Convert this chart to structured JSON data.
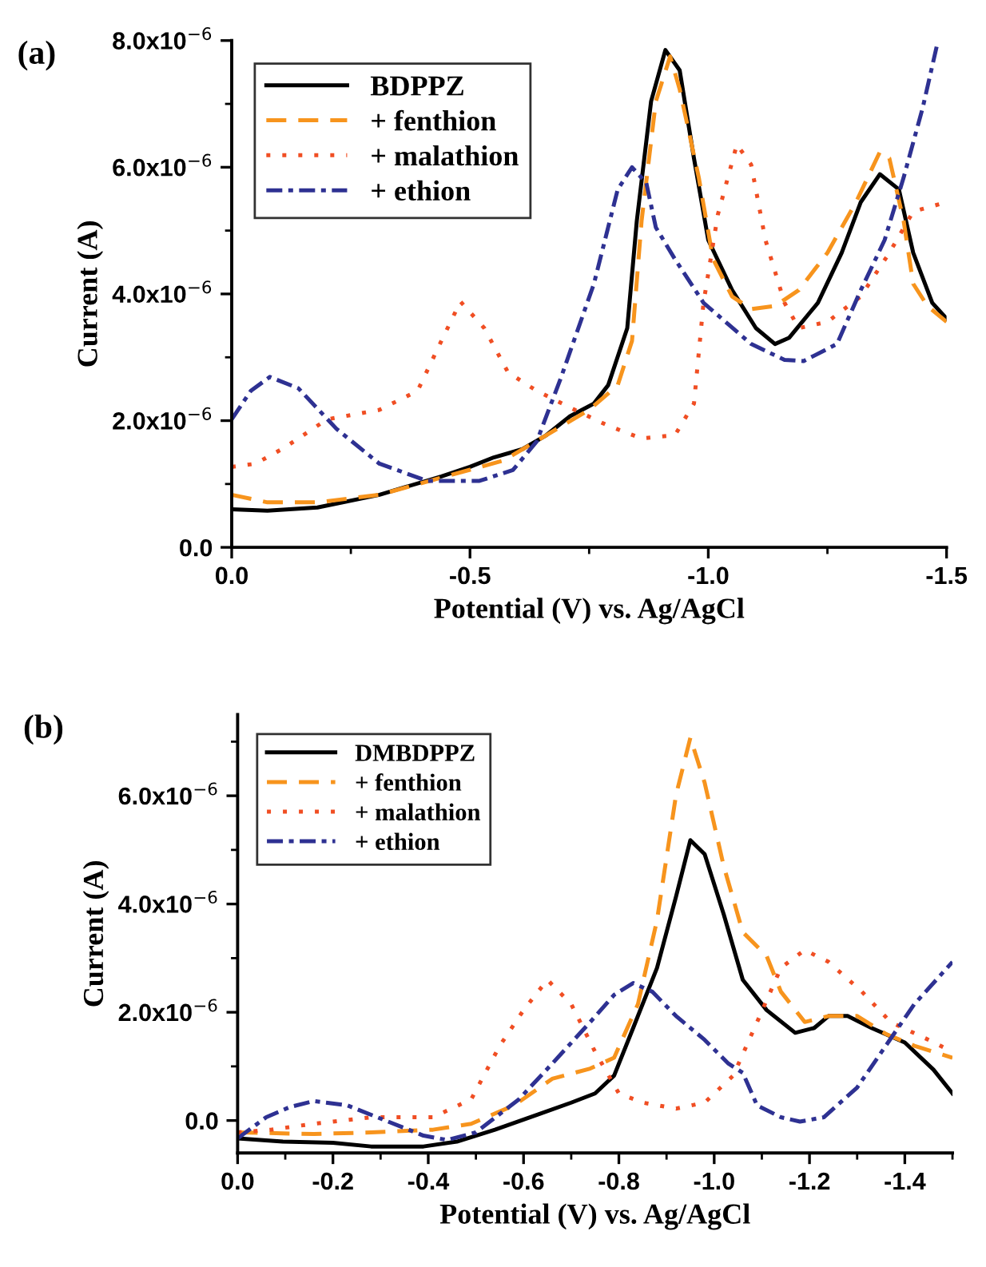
{
  "chart_data": [
    {
      "type": "line",
      "title": "(a)",
      "xlabel": "Potential (V) vs. Ag/AgCl",
      "ylabel": "Current (A)",
      "legend": "top left",
      "grid": false,
      "xlim": [
        0,
        -1.5
      ],
      "xticks": [
        {
          "value": 0,
          "label": "0.0"
        },
        {
          "value": -0.25,
          "label": null
        },
        {
          "value": -0.5,
          "label": "-0.5"
        },
        {
          "value": -0.75,
          "label": null
        },
        {
          "value": -1.0,
          "label": "-1.0"
        },
        {
          "value": -1.25,
          "label": null
        },
        {
          "value": -1.5,
          "label": "-1.5"
        }
      ],
      "ylim": [
        0,
        8e-06
      ],
      "yticks": [
        {
          "value": 0,
          "label": "0.0"
        },
        {
          "value": 1e-06,
          "label": null
        },
        {
          "value": 2e-06,
          "label": "2.0x10$^{−6}$"
        },
        {
          "value": 3e-06,
          "label": null
        },
        {
          "value": 4e-06,
          "label": "4.0x10$^{−6}$"
        },
        {
          "value": 5e-06,
          "label": null
        },
        {
          "value": 6e-06,
          "label": "6.0x10$^{−6}$"
        },
        {
          "value": 7e-06,
          "label": null
        },
        {
          "value": 8e-06,
          "label": "8.0x10$^{−6}$"
        }
      ],
      "series": [
        {
          "name": "BDPPZ",
          "color": "#000000",
          "line_style": "solid",
          "x": [
            0,
            -0.075,
            -0.18,
            -0.31,
            -0.44,
            -0.5,
            -0.55,
            -0.61,
            -0.66,
            -0.71,
            -0.76,
            -0.79,
            -0.83,
            -0.85,
            -0.88,
            -0.91,
            -0.94,
            -0.97,
            -1.0,
            -1.05,
            -1.1,
            -1.14,
            -1.17,
            -1.23,
            -1.28,
            -1.32,
            -1.36,
            -1.4,
            -1.43,
            -1.47,
            -1.5
          ],
          "values": [
            6e-07,
            5.8e-07,
            6.3e-07,
            8.3e-07,
            1.12e-06,
            1.27e-06,
            1.42e-06,
            1.55e-06,
            1.77e-06,
            2.07e-06,
            2.27e-06,
            2.56e-06,
            3.46e-06,
            5.15e-06,
            7.04e-06,
            7.85e-06,
            7.53e-06,
            6.14e-06,
            4.85e-06,
            4.06e-06,
            3.46e-06,
            3.21e-06,
            3.31e-06,
            3.86e-06,
            4.65e-06,
            5.45e-06,
            5.89e-06,
            5.65e-06,
            4.65e-06,
            3.86e-06,
            3.61e-06
          ]
        },
        {
          "name": "+ fenthion",
          "color": "#f7941d",
          "line_style": "dashed",
          "x": [
            0,
            -0.075,
            -0.18,
            -0.31,
            -0.44,
            -0.57,
            -0.66,
            -0.75,
            -0.81,
            -0.84,
            -0.86,
            -0.89,
            -0.92,
            -0.94,
            -0.98,
            -1.01,
            -1.05,
            -1.09,
            -1.14,
            -1.19,
            -1.25,
            -1.31,
            -1.36,
            -1.38,
            -1.41,
            -1.43,
            -1.46,
            -1.5
          ],
          "values": [
            8.3e-07,
            7.1e-07,
            7.1e-07,
            8.3e-07,
            1.1e-06,
            1.37e-06,
            1.77e-06,
            2.17e-06,
            2.56e-06,
            3.26e-06,
            5.15e-06,
            7.04e-06,
            7.75e-06,
            7.23e-06,
            5.84e-06,
            4.55e-06,
            3.96e-06,
            3.76e-06,
            3.81e-06,
            4.06e-06,
            4.65e-06,
            5.45e-06,
            6.24e-06,
            6.14e-06,
            5.15e-06,
            4.16e-06,
            3.81e-06,
            3.56e-06
          ]
        },
        {
          "name": "+ malathion",
          "color": "#f04e23",
          "line_style": "dotted",
          "x": [
            0,
            -0.05,
            -0.11,
            -0.2,
            -0.31,
            -0.39,
            -0.44,
            -0.48,
            -0.53,
            -0.58,
            -0.64,
            -0.72,
            -0.79,
            -0.86,
            -0.93,
            -0.97,
            -0.99,
            -1.02,
            -1.06,
            -1.09,
            -1.12,
            -1.16,
            -1.19,
            -1.25,
            -1.32,
            -1.38,
            -1.43,
            -1.5
          ],
          "values": [
            1.27e-06,
            1.32e-06,
            1.57e-06,
            2.02e-06,
            2.17e-06,
            2.47e-06,
            3.26e-06,
            3.88e-06,
            3.46e-06,
            2.76e-06,
            2.47e-06,
            2.17e-06,
            1.92e-06,
            1.72e-06,
            1.77e-06,
            2.27e-06,
            3.86e-06,
            5.25e-06,
            6.36e-06,
            6.04e-06,
            4.85e-06,
            3.86e-06,
            3.46e-06,
            3.56e-06,
            3.96e-06,
            4.65e-06,
            5.3e-06,
            5.45e-06
          ]
        },
        {
          "name": "+ ethion",
          "color": "#2e3192",
          "line_style": "dashdot",
          "x": [
            0,
            -0.04,
            -0.08,
            -0.14,
            -0.22,
            -0.31,
            -0.41,
            -0.52,
            -0.59,
            -0.64,
            -0.69,
            -0.76,
            -0.81,
            -0.84,
            -0.87,
            -0.89,
            -0.93,
            -0.99,
            -1.09,
            -1.16,
            -1.2,
            -1.27,
            -1.32,
            -1.37,
            -1.41,
            -1.45,
            -1.48
          ],
          "values": [
            2.02e-06,
            2.47e-06,
            2.69e-06,
            2.51e-06,
            1.87e-06,
            1.32e-06,
            1.05e-06,
            1.05e-06,
            1.22e-06,
            1.67e-06,
            2.66e-06,
            4.16e-06,
            5.65e-06,
            6e-06,
            5.75e-06,
            5.05e-06,
            4.55e-06,
            3.86e-06,
            3.21e-06,
            2.96e-06,
            2.94e-06,
            3.21e-06,
            4.06e-06,
            4.85e-06,
            5.84e-06,
            6.94e-06,
            7.93e-06
          ]
        }
      ]
    },
    {
      "type": "line",
      "title": "(b)",
      "xlabel": "Potential (V) vs. Ag/AgCl",
      "ylabel": "Current (A)",
      "legend": "top left",
      "grid": false,
      "xlim": [
        0,
        -1.5
      ],
      "xticks": [
        {
          "value": 0,
          "label": "0.0"
        },
        {
          "value": -0.1,
          "label": null
        },
        {
          "value": -0.2,
          "label": "-0.2"
        },
        {
          "value": -0.3,
          "label": null
        },
        {
          "value": -0.4,
          "label": "-0.4"
        },
        {
          "value": -0.5,
          "label": null
        },
        {
          "value": -0.6,
          "label": "-0.6"
        },
        {
          "value": -0.7,
          "label": null
        },
        {
          "value": -0.8,
          "label": "-0.8"
        },
        {
          "value": -0.9,
          "label": null
        },
        {
          "value": -1.0,
          "label": "-1.0"
        },
        {
          "value": -1.1,
          "label": null
        },
        {
          "value": -1.2,
          "label": "-1.2"
        },
        {
          "value": -1.3,
          "label": null
        },
        {
          "value": -1.4,
          "label": "-1.4"
        },
        {
          "value": -1.5,
          "label": null
        }
      ],
      "ylim": [
        -6e-07,
        7.5e-06
      ],
      "yticks": [
        {
          "value": 0,
          "label": "0.0"
        },
        {
          "value": 1e-06,
          "label": null
        },
        {
          "value": 2e-06,
          "label": "2.0x10$^{−6}$"
        },
        {
          "value": 3e-06,
          "label": null
        },
        {
          "value": 4e-06,
          "label": "4.0x10$^{−6}$"
        },
        {
          "value": 5e-06,
          "label": null
        },
        {
          "value": 6e-06,
          "label": "6.0x10$^{−6}$"
        },
        {
          "value": 7e-06,
          "label": null
        }
      ],
      "series": [
        {
          "name": "DMBDPPZ",
          "color": "#000000",
          "line_style": "solid",
          "x": [
            0,
            -0.095,
            -0.2,
            -0.28,
            -0.39,
            -0.46,
            -0.54,
            -0.63,
            -0.7,
            -0.75,
            -0.79,
            -0.83,
            -0.88,
            -0.92,
            -0.95,
            -0.98,
            -1.02,
            -1.06,
            -1.11,
            -1.17,
            -1.21,
            -1.24,
            -1.28,
            -1.33,
            -1.4,
            -1.46,
            -1.5
          ],
          "values": [
            -3.3e-07,
            -3.9e-07,
            -4.1e-07,
            -4.8e-07,
            -4.8e-07,
            -3.9e-07,
            -1.7e-07,
            1.1e-07,
            3.3e-07,
            5e-07,
            8.3e-07,
            1.71e-06,
            2.82e-06,
            4.14e-06,
            5.18e-06,
            4.92e-06,
            3.81e-06,
            2.6e-06,
            2.04e-06,
            1.62e-06,
            1.71e-06,
            1.93e-06,
            1.93e-06,
            1.71e-06,
            1.44e-06,
            9.4e-07,
            5e-07
          ]
        },
        {
          "name": "+ fenthion",
          "color": "#f7941d",
          "line_style": "dashed",
          "x": [
            0,
            -0.16,
            -0.28,
            -0.41,
            -0.49,
            -0.58,
            -0.66,
            -0.74,
            -0.79,
            -0.84,
            -0.88,
            -0.92,
            -0.95,
            -0.98,
            -1.02,
            -1.06,
            -1.11,
            -1.14,
            -1.19,
            -1.24,
            -1.3,
            -1.36,
            -1.42,
            -1.5
          ],
          "values": [
            -2.2e-07,
            -2.5e-07,
            -2.2e-07,
            -1.7e-07,
            -6e-08,
            2.8e-07,
            7.7e-07,
            9.6e-07,
            1.16e-06,
            2.15e-06,
            3.7e-06,
            6.02e-06,
            7.07e-06,
            6.24e-06,
            4.7e-06,
            3.48e-06,
            3.04e-06,
            2.38e-06,
            1.82e-06,
            1.93e-06,
            1.93e-06,
            1.6e-06,
            1.38e-06,
            1.16e-06
          ]
        },
        {
          "name": "+ malathion",
          "color": "#f04e23",
          "line_style": "dotted",
          "x": [
            0,
            -0.07,
            -0.16,
            -0.28,
            -0.41,
            -0.49,
            -0.55,
            -0.6,
            -0.65,
            -0.7,
            -0.75,
            -0.8,
            -0.85,
            -0.92,
            -0.98,
            -1.04,
            -1.09,
            -1.14,
            -1.19,
            -1.24,
            -1.31,
            -1.37,
            -1.45,
            -1.5
          ],
          "values": [
            -2.2e-07,
            -1.7e-07,
            -6e-08,
            6e-08,
            6e-08,
            3.9e-07,
            1.38e-06,
            2.04e-06,
            2.6e-06,
            2.15e-06,
            1.27e-06,
            5e-07,
            3.3e-07,
            2.2e-07,
            3.3e-07,
            8.3e-07,
            1.82e-06,
            2.82e-06,
            3.15e-06,
            2.93e-06,
            2.38e-06,
            1.82e-06,
            1.49e-06,
            1.27e-06
          ]
        },
        {
          "name": "+ ethion",
          "color": "#2e3192",
          "line_style": "dashdot",
          "x": [
            0,
            -0.06,
            -0.11,
            -0.16,
            -0.23,
            -0.31,
            -0.39,
            -0.44,
            -0.5,
            -0.59,
            -0.66,
            -0.74,
            -0.79,
            -0.83,
            -0.87,
            -0.92,
            -0.98,
            -1.03,
            -1.06,
            -1.09,
            -1.14,
            -1.18,
            -1.23,
            -1.3,
            -1.36,
            -1.42,
            -1.5
          ],
          "values": [
            -3.3e-07,
            6e-08,
            2.5e-07,
            3.6e-07,
            2.8e-07,
            0.0,
            -2.8e-07,
            -3.6e-07,
            -2.2e-07,
            3.9e-07,
            1.05e-06,
            1.82e-06,
            2.32e-06,
            2.54e-06,
            2.38e-06,
            1.93e-06,
            1.49e-06,
            1.05e-06,
            8.8e-07,
            2.8e-07,
            6e-08,
            -2e-08,
            6e-08,
            6.1e-07,
            1.38e-06,
            2.15e-06,
            2.93e-06
          ]
        }
      ]
    }
  ]
}
